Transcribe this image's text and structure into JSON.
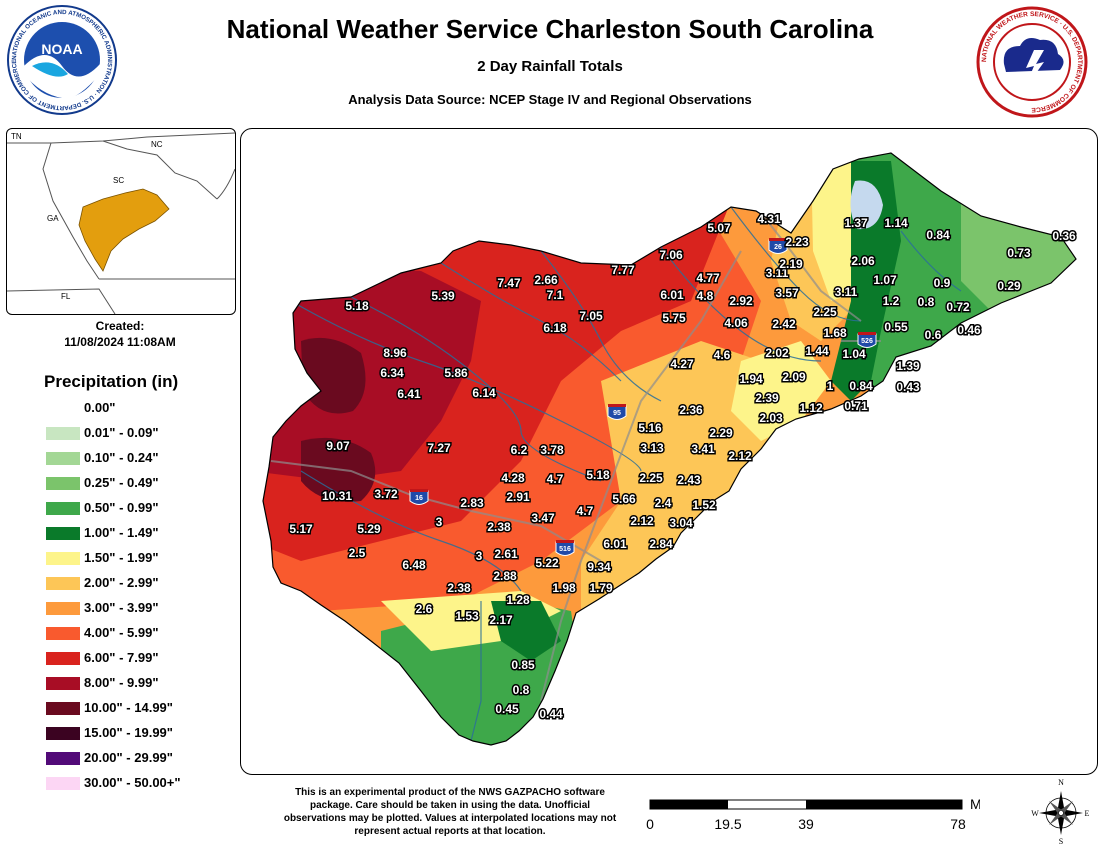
{
  "header": {
    "title": "National Weather Service Charleston South Carolina",
    "subtitle": "2 Day Rainfall Totals",
    "source": "Analysis Data Source: NCEP Stage IV and Regional Observations"
  },
  "logos": {
    "noaa_center": "NOAA",
    "noaa_ring": "NATIONAL OCEANIC AND ATMOSPHERIC ADMINISTRATION · U.S. DEPARTMENT OF COMMERCE",
    "nws_ring": "NATIONAL WEATHER SERVICE · U.S. DEPARTMENT OF COMMERCE"
  },
  "inset": {
    "labels": {
      "tn": "TN",
      "nc": "NC",
      "sc": "SC",
      "ga": "GA",
      "fl": "FL"
    },
    "highlight_color": "#e39e0e"
  },
  "created": {
    "label": "Created:",
    "datetime": "11/08/2024 11:08AM"
  },
  "legend": {
    "title": "Precipitation (in)",
    "items": [
      {
        "label": "0.00\"",
        "color": "#ffffff"
      },
      {
        "label": "0.01\" - 0.09\"",
        "color": "#c8e6c1"
      },
      {
        "label": "0.10\" - 0.24\"",
        "color": "#a3d795"
      },
      {
        "label": "0.25\" - 0.49\"",
        "color": "#7bc46b"
      },
      {
        "label": "0.50\" - 0.99\"",
        "color": "#3ea84a"
      },
      {
        "label": "1.00\" - 1.49\"",
        "color": "#0a7a2a"
      },
      {
        "label": "1.50\" - 1.99\"",
        "color": "#fdf48a"
      },
      {
        "label": "2.00\" - 2.99\"",
        "color": "#fdc657"
      },
      {
        "label": "3.00\" - 3.99\"",
        "color": "#fd9a3c"
      },
      {
        "label": "4.00\" - 5.99\"",
        "color": "#f95a2e"
      },
      {
        "label": "6.00\" - 7.99\"",
        "color": "#d9231e"
      },
      {
        "label": "8.00\" - 9.99\"",
        "color": "#a80d25"
      },
      {
        "label": "10.00\" - 14.99\"",
        "color": "#6a0a1f"
      },
      {
        "label": "15.00\" - 19.99\"",
        "color": "#3b0321"
      },
      {
        "label": "20.00\" - 29.99\"",
        "color": "#520a78"
      },
      {
        "label": "30.00\" - 50.00+\"",
        "color": "#fcd6f4"
      }
    ]
  },
  "map": {
    "interstates": [
      {
        "number": "26"
      },
      {
        "number": "95"
      },
      {
        "number": "16"
      },
      {
        "number": "516"
      },
      {
        "number": "526"
      }
    ],
    "watermark": "NATIONAL WEATHER SERVICE · DEPARTMENT OF COMMERCE",
    "values": [
      "5.18",
      "5.39",
      "7.47",
      "2.66",
      "7.77",
      "7.06",
      "5.07",
      "4.31",
      "1.37",
      "1.14",
      "0.84",
      "0.36",
      "0.73",
      "7.1",
      "6.01",
      "4.77",
      "3.11",
      "2.23",
      "2.19",
      "2.06",
      "0.9",
      "0.29",
      "6.18",
      "7.05",
      "4.8",
      "2.92",
      "3.57",
      "3.11",
      "1.07",
      "1.2",
      "0.8",
      "0.72",
      "5.75",
      "4.06",
      "2.42",
      "2.25",
      "1.68",
      "0.55",
      "0.6",
      "0.46",
      "8.96",
      "6.34",
      "5.86",
      "4.27",
      "4.6",
      "2.02",
      "1.44",
      "1.04",
      "1.39",
      "6.41",
      "6.14",
      "1.94",
      "2.09",
      "1",
      "0.84",
      "0.43",
      "2.39",
      "1.12",
      "0.71",
      "2.36",
      "2.03",
      "5.16",
      "2.29",
      "9.07",
      "7.27",
      "6.2",
      "3.78",
      "3.13",
      "3.41",
      "2.12",
      "4.28",
      "4.7",
      "5.18",
      "2.25",
      "2.43",
      "10.31",
      "3.72",
      "2.83",
      "2.91",
      "5.66",
      "2.4",
      "1.52",
      "5.17",
      "5.29",
      "3",
      "2.38",
      "3.47",
      "4.7",
      "2.12",
      "3.04",
      "2.5",
      "6.01",
      "2.84",
      "6.48",
      "3",
      "2.61",
      "5.22",
      "9.34",
      "2.88",
      "2.38",
      "1.98",
      "1.79",
      "2.6",
      "1.53",
      "1.28",
      "2.17",
      "0.85",
      "0.8",
      "0.45",
      "0.44"
    ]
  },
  "disclaimer": "This is an experimental product of the NWS GAZPACHO software package. Care should be taken in using the data. Unofficial observations may be plotted. Values at interpolated locations may not represent actual reports at that location.",
  "scalebar": {
    "unit": "Miles",
    "ticks": [
      "0",
      "19.5",
      "39",
      "78"
    ]
  },
  "compass": {
    "n": "N",
    "s": "S",
    "e": "E",
    "w": "W"
  }
}
